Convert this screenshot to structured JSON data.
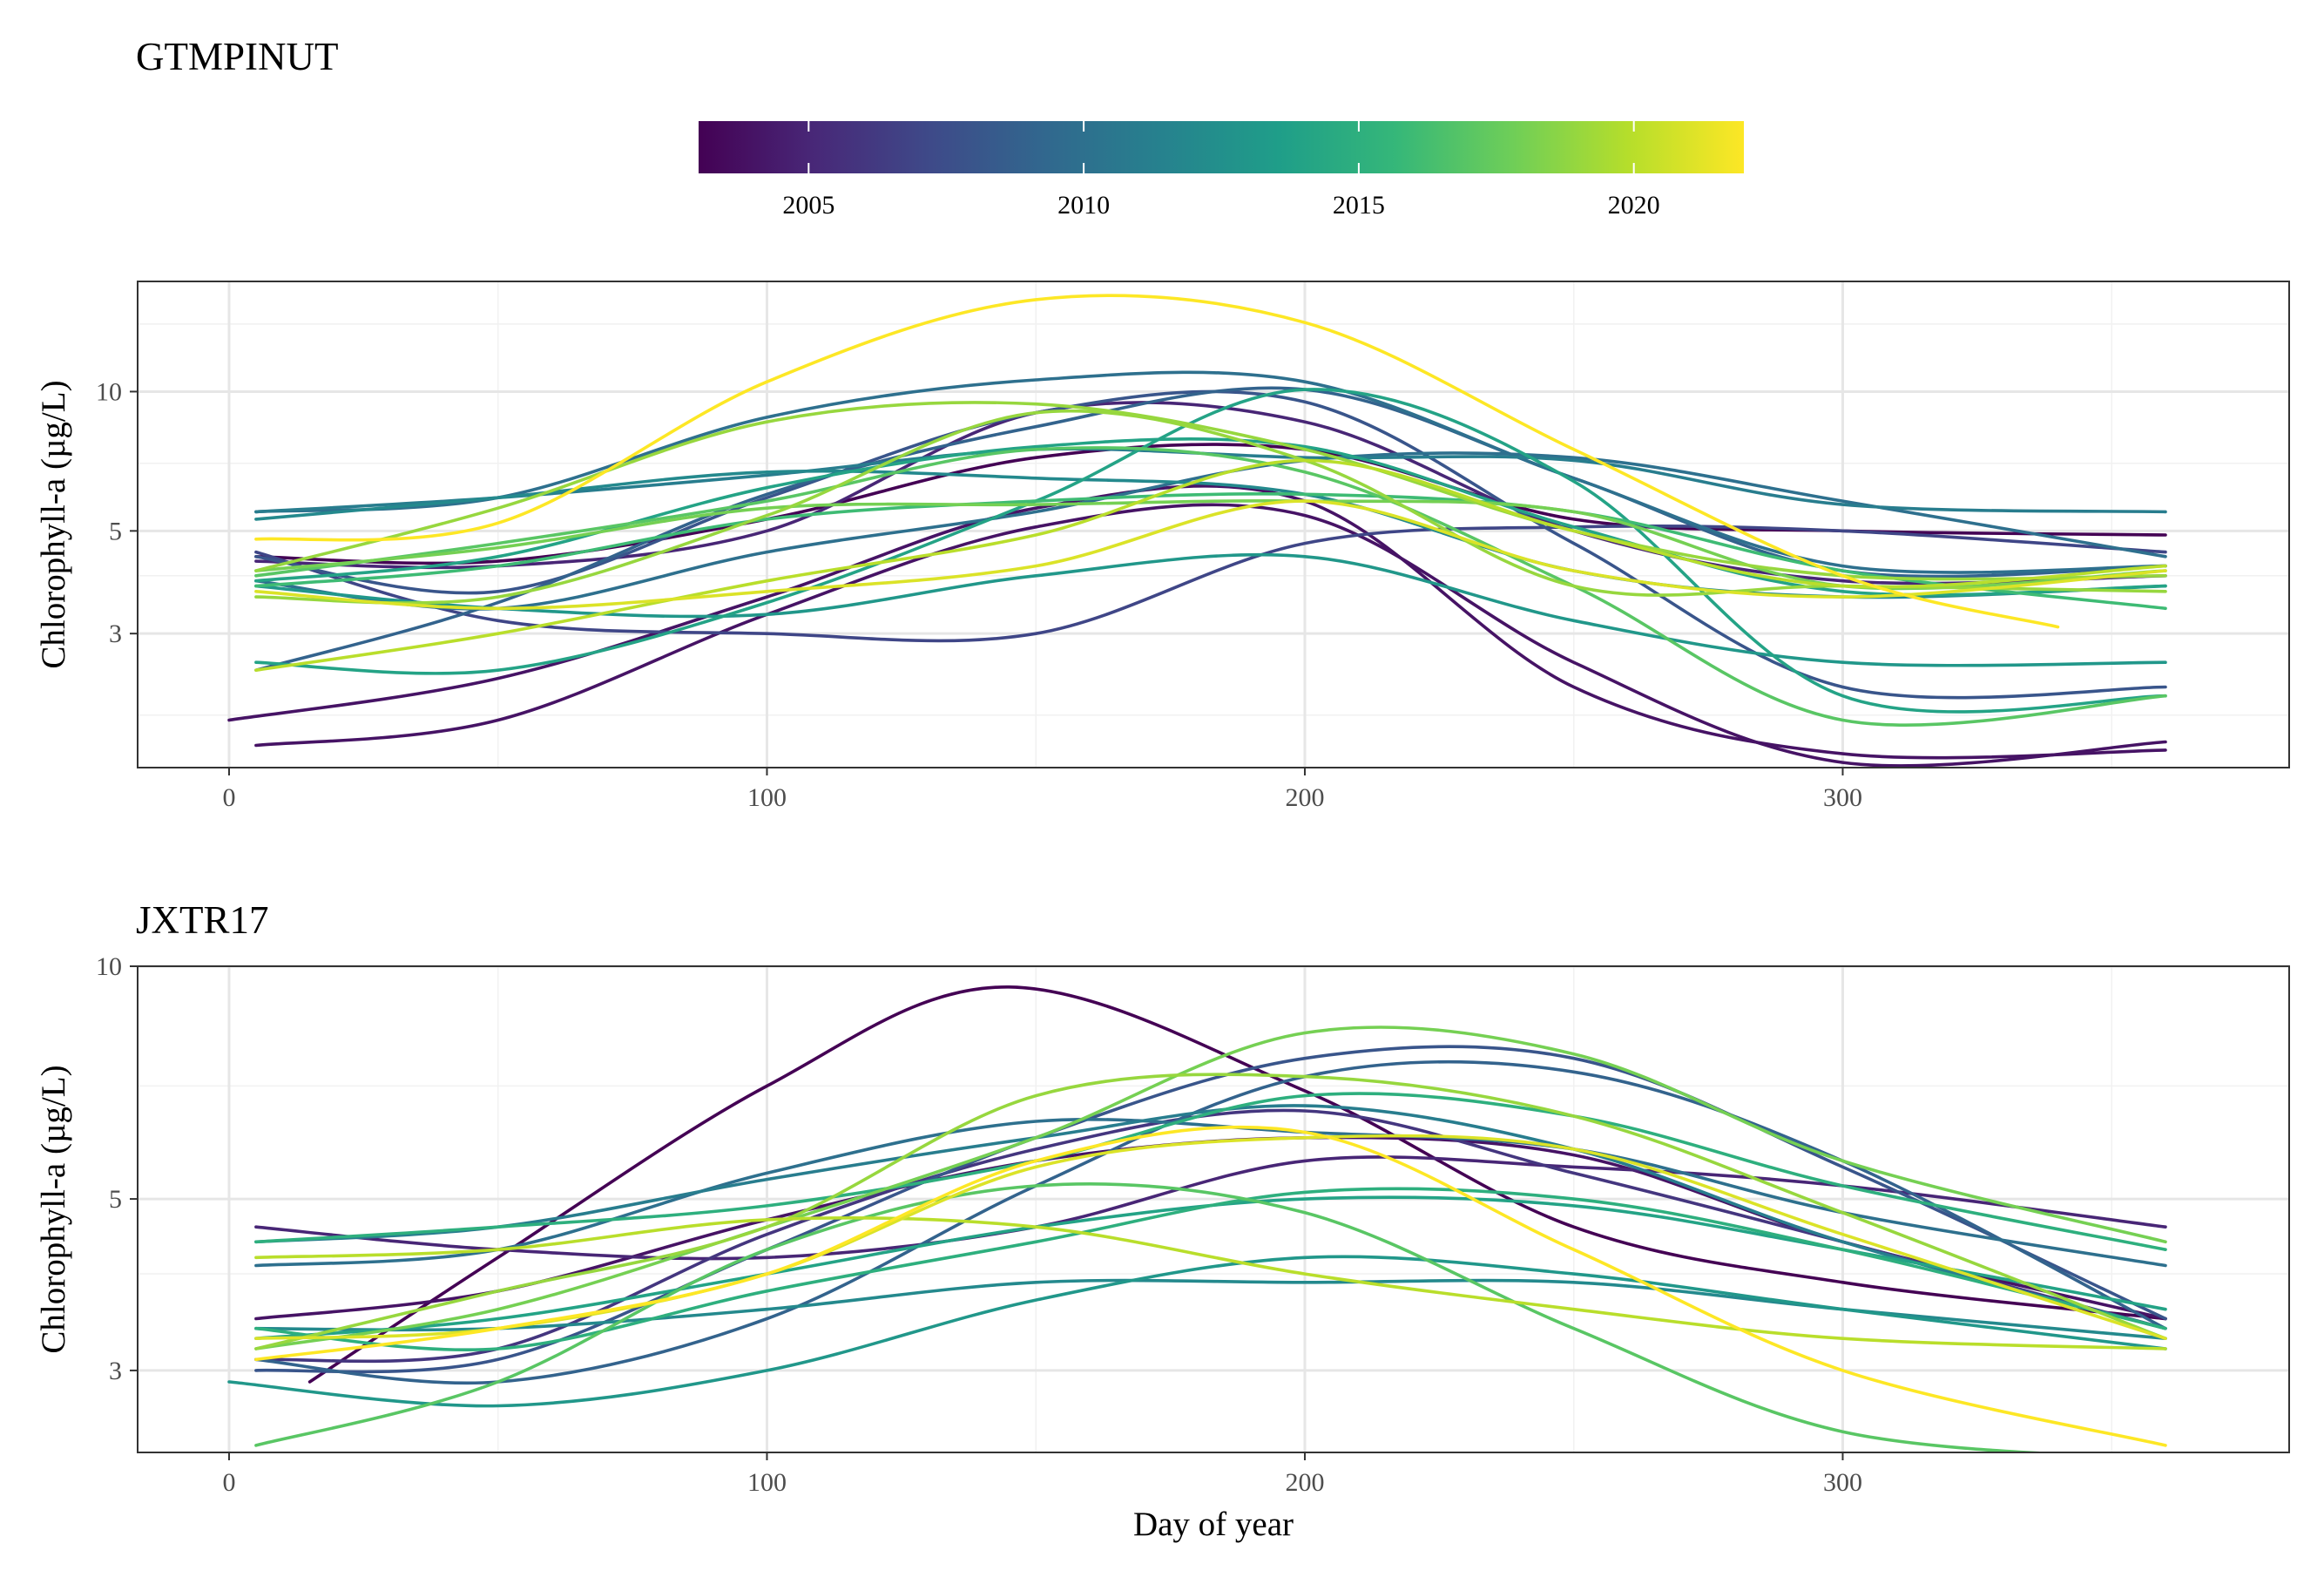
{
  "colorbar": {
    "range": [
      2003,
      2022
    ],
    "ticks": [
      2005,
      2010,
      2015,
      2020
    ],
    "tick_labels": [
      "2005",
      "2010",
      "2015",
      "2020"
    ],
    "colors": [
      "#440154",
      "#482878",
      "#3e4a89",
      "#31688e",
      "#26828e",
      "#1f9e89",
      "#35b779",
      "#6ece58",
      "#b5de2b",
      "#fde725"
    ]
  },
  "chart_data": [
    {
      "type": "line",
      "title": "GTMPINUT",
      "xlabel": "",
      "ylabel": "Chlorophyll-a (µg/L)",
      "xlim": [
        -17,
        383
      ],
      "ylim": [
        1.54,
        17.3
      ],
      "y_scale": "log",
      "xticks": [
        0,
        100,
        200,
        300
      ],
      "xtick_labels": [
        "0",
        "100",
        "200",
        "300"
      ],
      "yticks": [
        3,
        5,
        10
      ],
      "ytick_labels": [
        "3",
        "5",
        "10"
      ],
      "ygrid_minor": [
        2,
        4,
        7,
        14
      ],
      "grid": true,
      "series": [
        {
          "year": 2003,
          "x": [
            5,
            50,
            100,
            150,
            200,
            250,
            300,
            360
          ],
          "y": [
            4.4,
            4.3,
            5.3,
            7.2,
            7.5,
            5.3,
            5.0,
            4.9
          ]
        },
        {
          "year": 2004,
          "x": [
            0,
            50,
            100,
            150,
            200,
            250,
            300,
            360
          ],
          "y": [
            1.95,
            2.4,
            3.6,
            5.6,
            5.8,
            2.3,
            1.65,
            1.68
          ]
        },
        {
          "year": 2004,
          "x": [
            5,
            50,
            100,
            150,
            200,
            250,
            300,
            360
          ],
          "y": [
            1.72,
            1.95,
            3.3,
            5.1,
            5.4,
            2.6,
            1.58,
            1.75
          ]
        },
        {
          "year": 2005,
          "x": [
            5,
            50,
            100,
            150,
            200,
            250,
            300,
            360
          ],
          "y": [
            4.3,
            4.2,
            5.0,
            9.0,
            8.6,
            5.0,
            3.9,
            4.0
          ]
        },
        {
          "year": 2007,
          "x": [
            5,
            50,
            100,
            150,
            200,
            250,
            300,
            360
          ],
          "y": [
            4.5,
            3.2,
            3.0,
            3.0,
            4.7,
            5.1,
            5.0,
            4.5
          ]
        },
        {
          "year": 2008,
          "x": [
            5,
            50,
            100,
            150,
            200,
            250,
            300,
            360
          ],
          "y": [
            4.4,
            3.7,
            5.9,
            9.0,
            9.5,
            4.7,
            2.3,
            2.3
          ]
        },
        {
          "year": 2009,
          "x": [
            5,
            50,
            100,
            150,
            200,
            250,
            300,
            360
          ],
          "y": [
            2.5,
            3.5,
            6.0,
            8.4,
            10.1,
            6.5,
            4.1,
            4.2
          ]
        },
        {
          "year": 2010,
          "x": [
            5,
            50,
            100,
            150,
            200,
            250,
            300,
            360
          ],
          "y": [
            3.9,
            3.4,
            4.5,
            5.5,
            7.1,
            7.2,
            5.8,
            4.4
          ]
        },
        {
          "year": 2010,
          "x": [
            5,
            50,
            100,
            150,
            200,
            250,
            300,
            360
          ],
          "y": [
            5.5,
            5.9,
            8.8,
            10.6,
            10.5,
            6.5,
            4.2,
            4.2
          ]
        },
        {
          "year": 2011,
          "x": [
            5,
            50,
            100,
            150,
            200,
            250,
            300,
            360
          ],
          "y": [
            5.5,
            5.9,
            6.6,
            7.5,
            7.2,
            7.1,
            5.7,
            5.5
          ]
        },
        {
          "year": 2012,
          "x": [
            5,
            50,
            100,
            150,
            200,
            250,
            300,
            360
          ],
          "y": [
            5.3,
            5.9,
            6.7,
            6.5,
            6.0,
            4.1,
            3.6,
            3.8
          ]
        },
        {
          "year": 2013,
          "x": [
            5,
            50,
            100,
            150,
            200,
            250,
            300,
            360
          ],
          "y": [
            3.8,
            3.4,
            3.3,
            4.0,
            4.4,
            3.2,
            2.6,
            2.6
          ]
        },
        {
          "year": 2014,
          "x": [
            5,
            50,
            100,
            150,
            200,
            250,
            300,
            360
          ],
          "y": [
            3.9,
            4.4,
            6.2,
            7.6,
            7.6,
            5.1,
            3.7,
            3.8
          ]
        },
        {
          "year": 2014,
          "x": [
            5,
            50,
            100,
            150,
            200,
            250,
            300,
            360
          ],
          "y": [
            2.6,
            2.5,
            3.5,
            5.8,
            10.1,
            6.4,
            2.2,
            2.2
          ]
        },
        {
          "year": 2016,
          "x": [
            5,
            50,
            100,
            150,
            200,
            250,
            300,
            360
          ],
          "y": [
            3.8,
            4.2,
            5.3,
            5.8,
            6.0,
            5.5,
            4.1,
            3.4
          ]
        },
        {
          "year": 2017,
          "x": [
            5,
            50,
            100,
            150,
            200,
            250,
            300,
            360
          ],
          "y": [
            4.0,
            4.7,
            5.8,
            7.5,
            6.7,
            3.8,
            1.95,
            2.2
          ]
        },
        {
          "year": 2018,
          "x": [
            5,
            50,
            100,
            150,
            200,
            250,
            300,
            360
          ],
          "y": [
            4.1,
            4.6,
            5.6,
            5.7,
            5.8,
            5.5,
            3.8,
            4.1
          ]
        },
        {
          "year": 2019,
          "x": [
            5,
            50,
            100,
            150,
            200,
            250,
            300,
            360
          ],
          "y": [
            3.6,
            3.6,
            5.4,
            9.0,
            7.1,
            3.8,
            3.8,
            3.7
          ]
        },
        {
          "year": 2019,
          "x": [
            5,
            50,
            100,
            150,
            200,
            250,
            300,
            360
          ],
          "y": [
            4.1,
            5.6,
            8.6,
            9.4,
            7.5,
            5.0,
            4.0,
            4.0
          ]
        },
        {
          "year": 2020,
          "x": [
            5,
            50,
            100,
            150,
            200,
            250,
            300,
            360
          ],
          "y": [
            2.5,
            3.0,
            3.9,
            4.9,
            7.1,
            5.0,
            3.8,
            4.2
          ]
        },
        {
          "year": 2021,
          "x": [
            5,
            50,
            100,
            150,
            200,
            250,
            300,
            360
          ],
          "y": [
            3.7,
            3.4,
            3.7,
            4.2,
            5.8,
            4.1,
            3.6,
            4.1
          ]
        },
        {
          "year": 2022,
          "x": [
            5,
            50,
            100,
            150,
            200,
            250,
            300,
            340
          ],
          "y": [
            4.8,
            5.2,
            10.5,
            15.8,
            14.1,
            7.5,
            4.0,
            3.1
          ]
        }
      ]
    },
    {
      "type": "line",
      "title": "JXTR17",
      "xlabel": "Day of year",
      "ylabel": "Chlorophyll-a (µg/L)",
      "xlim": [
        -17,
        383
      ],
      "ylim": [
        2.35,
        10.0
      ],
      "y_scale": "log",
      "xticks": [
        0,
        100,
        200,
        300
      ],
      "xtick_labels": [
        "0",
        "100",
        "200",
        "300"
      ],
      "yticks": [
        3,
        5,
        10
      ],
      "ytick_labels": [
        "3",
        "5",
        "10"
      ],
      "ygrid_minor": [
        4,
        7
      ],
      "grid": true,
      "series": [
        {
          "year": 2003,
          "x": [
            15,
            50,
            100,
            145,
            200,
            250,
            300,
            360
          ],
          "y": [
            2.9,
            4.2,
            7.0,
            9.4,
            6.9,
            4.6,
            3.9,
            3.5
          ]
        },
        {
          "year": 2004,
          "x": [
            5,
            50,
            100,
            150,
            200,
            250,
            300,
            360
          ],
          "y": [
            3.5,
            3.8,
            4.7,
            5.6,
            6.0,
            5.7,
            4.4,
            3.5
          ]
        },
        {
          "year": 2005,
          "x": [
            5,
            50,
            100,
            150,
            200,
            250,
            300,
            360
          ],
          "y": [
            4.6,
            4.3,
            4.2,
            4.6,
            5.6,
            5.5,
            5.2,
            4.6
          ]
        },
        {
          "year": 2006,
          "x": [
            5,
            50,
            100,
            150,
            200,
            250,
            300,
            360
          ],
          "y": [
            3.1,
            3.2,
            4.5,
            5.8,
            6.5,
            5.4,
            4.4,
            3.4
          ]
        },
        {
          "year": 2008,
          "x": [
            5,
            50,
            100,
            150,
            200,
            250,
            300,
            360
          ],
          "y": [
            3.0,
            3.1,
            4.3,
            6.0,
            7.6,
            7.6,
            5.5,
            3.5
          ]
        },
        {
          "year": 2009,
          "x": [
            5,
            50,
            100,
            150,
            200,
            250,
            300,
            360
          ],
          "y": [
            3.1,
            2.9,
            3.5,
            5.2,
            7.2,
            7.3,
            5.6,
            3.4
          ]
        },
        {
          "year": 2010,
          "x": [
            5,
            50,
            100,
            150,
            200,
            250,
            300,
            360
          ],
          "y": [
            4.1,
            4.3,
            5.4,
            6.3,
            6.1,
            5.8,
            4.8,
            4.1
          ]
        },
        {
          "year": 2011,
          "x": [
            5,
            50,
            100,
            150,
            200,
            250,
            300,
            360
          ],
          "y": [
            4.4,
            4.6,
            5.3,
            6.0,
            6.6,
            5.8,
            4.4,
            3.4
          ]
        },
        {
          "year": 2012,
          "x": [
            5,
            50,
            100,
            150,
            200,
            250,
            300,
            360
          ],
          "y": [
            3.4,
            3.4,
            3.6,
            3.9,
            3.9,
            3.9,
            3.6,
            3.3
          ]
        },
        {
          "year": 2013,
          "x": [
            0,
            50,
            100,
            150,
            200,
            250,
            300,
            360
          ],
          "y": [
            2.9,
            2.7,
            3.0,
            3.7,
            4.2,
            4.0,
            3.6,
            3.2
          ]
        },
        {
          "year": 2014,
          "x": [
            5,
            50,
            100,
            150,
            200,
            250,
            300,
            360
          ],
          "y": [
            3.3,
            3.5,
            4.0,
            4.6,
            5.0,
            4.9,
            4.3,
            3.6
          ]
        },
        {
          "year": 2015,
          "x": [
            5,
            50,
            100,
            150,
            200,
            250,
            300,
            360
          ],
          "y": [
            4.4,
            4.6,
            4.9,
            5.6,
            6.8,
            6.4,
            5.2,
            4.3
          ]
        },
        {
          "year": 2015,
          "x": [
            5,
            50,
            100,
            150,
            200,
            250,
            300,
            360
          ],
          "y": [
            3.4,
            3.2,
            3.8,
            4.4,
            5.1,
            5.0,
            4.3,
            3.4
          ]
        },
        {
          "year": 2017,
          "x": [
            5,
            50,
            100,
            150,
            200,
            250,
            300,
            360
          ],
          "y": [
            2.4,
            2.9,
            4.3,
            5.2,
            4.8,
            3.4,
            2.5,
            2.3
          ]
        },
        {
          "year": 2018,
          "x": [
            5,
            50,
            100,
            150,
            200,
            250,
            300,
            360
          ],
          "y": [
            3.2,
            3.6,
            4.6,
            6.0,
            8.2,
            7.7,
            5.6,
            4.4
          ]
        },
        {
          "year": 2019,
          "x": [
            5,
            50,
            100,
            150,
            200,
            250,
            300,
            360
          ],
          "y": [
            3.2,
            3.8,
            4.6,
            6.8,
            7.2,
            6.4,
            4.8,
            3.3
          ]
        },
        {
          "year": 2020,
          "x": [
            5,
            50,
            100,
            150,
            200,
            250,
            300,
            360
          ],
          "y": [
            4.2,
            4.3,
            4.7,
            4.6,
            4.0,
            3.6,
            3.3,
            3.2
          ]
        },
        {
          "year": 2021,
          "x": [
            5,
            50,
            100,
            150,
            200,
            250,
            300,
            360
          ],
          "y": [
            3.3,
            3.4,
            4.0,
            5.5,
            6.0,
            5.8,
            4.5,
            3.3
          ]
        },
        {
          "year": 2022,
          "x": [
            5,
            50,
            100,
            150,
            200,
            250,
            300,
            360
          ],
          "y": [
            3.1,
            3.4,
            4.0,
            5.6,
            6.1,
            4.3,
            3.0,
            2.4
          ]
        }
      ]
    }
  ]
}
